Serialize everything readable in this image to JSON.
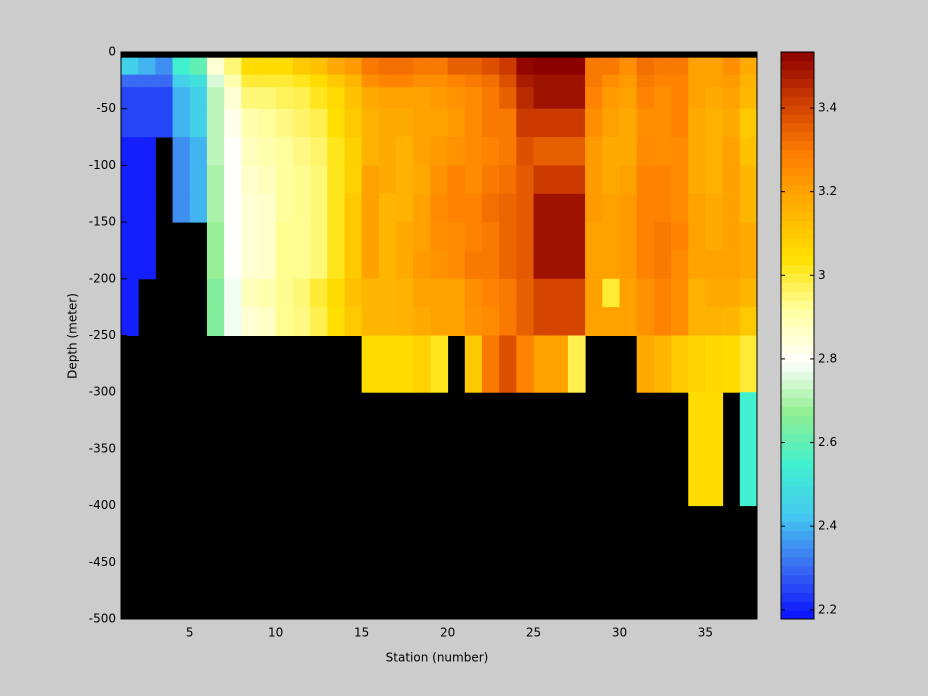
{
  "chart_data": {
    "type": "heatmap",
    "xlabel": "Station (number)",
    "ylabel": "Depth (meter)",
    "x": [
      1,
      2,
      3,
      4,
      5,
      6,
      7,
      8,
      9,
      10,
      11,
      12,
      13,
      14,
      15,
      16,
      17,
      18,
      19,
      20,
      21,
      22,
      23,
      24,
      25,
      26,
      27,
      28,
      29,
      30,
      31,
      32,
      33,
      34,
      35,
      36,
      37,
      38
    ],
    "y": [
      0,
      -5,
      -20,
      -31,
      -50,
      -75,
      -100,
      -125,
      -150,
      -175,
      -200,
      -225,
      -250,
      -300,
      -400,
      -500
    ],
    "values": [
      [
        null,
        2.45,
        2.3,
        2.25,
        2.25,
        2.2,
        2.2,
        2.2,
        2.2,
        2.2,
        2.2,
        2.2,
        null,
        null,
        null
      ],
      [
        null,
        2.4,
        2.3,
        2.25,
        2.25,
        2.2,
        2.2,
        2.2,
        2.2,
        2.2,
        null,
        null,
        null,
        null,
        null
      ],
      [
        null,
        2.35,
        2.3,
        2.25,
        2.25,
        null,
        null,
        null,
        null,
        null,
        null,
        null,
        null,
        null,
        null
      ],
      [
        null,
        2.55,
        2.45,
        2.4,
        2.4,
        2.35,
        2.35,
        2.35,
        null,
        null,
        null,
        null,
        null,
        null,
        null
      ],
      [
        null,
        2.6,
        2.5,
        2.45,
        2.45,
        2.4,
        2.4,
        2.4,
        null,
        null,
        null,
        null,
        null,
        null,
        null
      ],
      [
        null,
        2.85,
        2.75,
        2.72,
        2.72,
        2.72,
        2.7,
        2.7,
        2.68,
        2.68,
        2.65,
        2.65,
        null,
        null,
        null
      ],
      [
        null,
        2.95,
        2.9,
        2.85,
        2.82,
        2.8,
        2.8,
        2.8,
        2.8,
        2.8,
        2.78,
        2.78,
        null,
        null,
        null
      ],
      [
        null,
        3.05,
        3,
        2.95,
        2.9,
        2.88,
        2.86,
        2.85,
        2.85,
        2.85,
        2.88,
        2.85,
        null,
        null,
        null
      ],
      [
        null,
        3.05,
        3,
        2.95,
        2.92,
        2.9,
        2.88,
        2.86,
        2.86,
        2.86,
        2.9,
        2.87,
        null,
        null,
        null
      ],
      [
        null,
        3.05,
        3,
        2.97,
        2.94,
        2.92,
        2.92,
        2.92,
        2.93,
        2.93,
        2.93,
        2.93,
        null,
        null,
        null
      ],
      [
        null,
        3.1,
        3.02,
        2.98,
        2.96,
        2.94,
        2.93,
        2.93,
        2.93,
        2.93,
        2.95,
        2.94,
        null,
        null,
        null
      ],
      [
        null,
        3.12,
        3.05,
        3.02,
        2.98,
        2.96,
        2.95,
        2.95,
        2.95,
        2.95,
        3,
        2.98,
        null,
        null,
        null
      ],
      [
        null,
        3.18,
        3.1,
        3.06,
        3.04,
        3.02,
        3.02,
        3.02,
        3.02,
        3.02,
        3.05,
        3.04,
        null,
        null,
        null
      ],
      [
        null,
        3.22,
        3.15,
        3.12,
        3.1,
        3.08,
        3.08,
        3.1,
        3.1,
        3.1,
        3.12,
        3.1,
        null,
        null,
        null
      ],
      [
        null,
        3.3,
        3.25,
        3.18,
        3.16,
        3.16,
        3.2,
        3.2,
        3.2,
        3.2,
        3.15,
        3.15,
        3.05,
        null,
        null
      ],
      [
        null,
        3.32,
        3.28,
        3.2,
        3.18,
        3.18,
        3.18,
        3.15,
        3.15,
        3.15,
        3.15,
        3.15,
        3.05,
        null,
        null
      ],
      [
        null,
        3.32,
        3.28,
        3.2,
        3.18,
        3.16,
        3.16,
        3.16,
        3.18,
        3.18,
        3.16,
        3.16,
        3.05,
        null,
        null
      ],
      [
        null,
        3.3,
        3.25,
        3.2,
        3.2,
        3.2,
        3.18,
        3.2,
        3.2,
        3.22,
        3.2,
        3.18,
        3.08,
        null,
        null
      ],
      [
        null,
        3.3,
        3.25,
        3.22,
        3.2,
        3.22,
        3.24,
        3.26,
        3.25,
        3.24,
        3.2,
        3.2,
        3.02,
        null,
        null
      ],
      [
        null,
        3.35,
        3.28,
        3.24,
        3.22,
        3.24,
        3.28,
        3.28,
        3.26,
        3.26,
        3.2,
        3.2,
        null,
        null,
        null
      ],
      [
        null,
        3.35,
        3.3,
        3.26,
        3.26,
        3.26,
        3.26,
        3.28,
        3.28,
        3.3,
        3.25,
        3.24,
        3.1,
        null,
        null
      ],
      [
        null,
        3.38,
        3.32,
        3.3,
        3.3,
        3.28,
        3.3,
        3.32,
        3.3,
        3.3,
        3.28,
        3.26,
        3.3,
        null,
        null
      ],
      [
        null,
        3.42,
        3.38,
        3.35,
        3.3,
        3.3,
        3.32,
        3.34,
        3.34,
        3.34,
        3.3,
        3.3,
        3.38,
        null,
        null
      ],
      [
        null,
        3.52,
        3.48,
        3.45,
        3.42,
        3.38,
        3.36,
        3.36,
        3.36,
        3.36,
        3.35,
        3.35,
        3.28,
        null,
        null
      ],
      [
        null,
        3.53,
        3.5,
        3.5,
        3.42,
        3.35,
        3.42,
        3.5,
        3.5,
        3.5,
        3.4,
        3.4,
        3.2,
        null,
        null
      ],
      [
        null,
        3.53,
        3.5,
        3.5,
        3.42,
        3.35,
        3.42,
        3.5,
        3.5,
        3.5,
        3.4,
        3.4,
        3.2,
        null,
        null
      ],
      [
        null,
        3.53,
        3.5,
        3.5,
        3.42,
        3.35,
        3.42,
        3.5,
        3.5,
        3.5,
        3.4,
        3.4,
        2.98,
        null,
        null
      ],
      [
        null,
        3.3,
        3.3,
        3.28,
        3.25,
        3.22,
        3.22,
        3.22,
        3.2,
        3.2,
        3.2,
        3.2,
        null,
        null,
        null
      ],
      [
        null,
        3.3,
        3.25,
        3.22,
        3.2,
        3.18,
        3.18,
        3.2,
        3.2,
        3.2,
        3,
        3.2,
        null,
        null,
        null
      ],
      [
        null,
        3.25,
        3.22,
        3.2,
        3.18,
        3.18,
        3.2,
        3.22,
        3.22,
        3.22,
        3.2,
        3.2,
        null,
        null,
        null
      ],
      [
        null,
        3.32,
        3.3,
        3.28,
        3.25,
        3.26,
        3.28,
        3.28,
        3.28,
        3.28,
        3.24,
        3.24,
        3.18,
        null,
        null
      ],
      [
        null,
        3.3,
        3.28,
        3.25,
        3.25,
        3.25,
        3.28,
        3.28,
        3.3,
        3.3,
        3.28,
        3.28,
        3.15,
        null,
        null
      ],
      [
        null,
        3.3,
        3.28,
        3.28,
        3.28,
        3.26,
        3.26,
        3.26,
        3.28,
        3.26,
        3.25,
        3.25,
        3.1,
        null,
        null
      ],
      [
        null,
        3.2,
        3.2,
        3.2,
        3.18,
        3.18,
        3.18,
        3.2,
        3.2,
        3.2,
        3.16,
        3.16,
        3.08,
        3.05,
        null
      ],
      [
        null,
        3.2,
        3.2,
        3.18,
        3.16,
        3.16,
        3.16,
        3.18,
        3.18,
        3.2,
        3.18,
        3.16,
        3.06,
        3.05,
        null
      ],
      [
        null,
        3.25,
        3.22,
        3.2,
        3.18,
        3.2,
        3.2,
        3.2,
        3.2,
        3.2,
        3.18,
        3.15,
        3.05,
        null,
        null
      ],
      [
        null,
        3.18,
        3.16,
        3.14,
        3.1,
        3.12,
        3.15,
        3.15,
        3.18,
        3.18,
        3.15,
        3.1,
        3,
        2.55,
        null
      ]
    ],
    "xlim": [
      1,
      38
    ],
    "xticks": [
      5,
      10,
      15,
      20,
      25,
      30,
      35
    ],
    "ylim": [
      -500,
      0
    ],
    "yticks": [
      -500,
      -450,
      -400,
      -350,
      -300,
      -250,
      -200,
      -150,
      -100,
      -50,
      0
    ],
    "clim": [
      2.178,
      3.534
    ],
    "cticks": [
      2.2,
      2.4,
      2.6,
      2.8,
      3,
      3.2,
      3.4
    ],
    "colormap": [
      "#0a10ff",
      "#3a6af2",
      "#44c8f0",
      "#40f0d0",
      "#90ee90",
      "#ffffff",
      "#ffffa0",
      "#ffe000",
      "#ffb000",
      "#ff8000",
      "#d04000",
      "#8b0000"
    ],
    "missing_color": "#000000"
  }
}
